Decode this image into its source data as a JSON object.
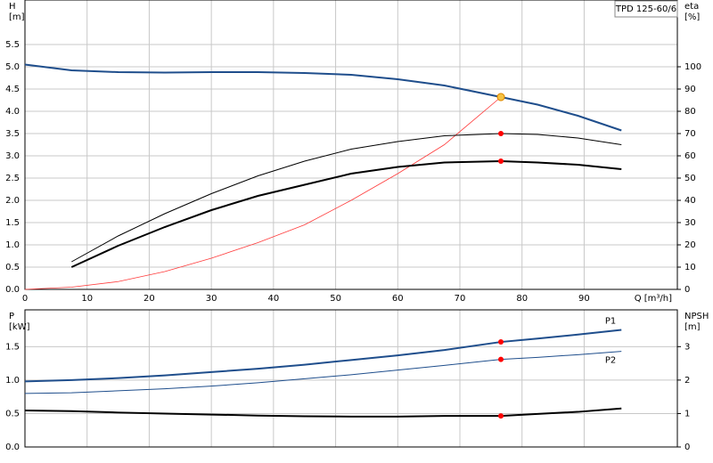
{
  "title": "TPD 125-60/6",
  "chart_data": [
    {
      "type": "line",
      "x_label": "Q [m³/h]",
      "y_label": "H",
      "y_unit": "[m]",
      "y2_label": "eta",
      "y2_unit": "[%]",
      "x": [
        0,
        7.5,
        15,
        22.5,
        30,
        37.5,
        45,
        52.5,
        60,
        67.5,
        76.6,
        82.5,
        89,
        96
      ],
      "xlim": [
        0,
        105
      ],
      "xticks": [
        0,
        10,
        20,
        30,
        40,
        50,
        60,
        70,
        80,
        90
      ],
      "ylim": [
        0,
        6.5
      ],
      "yticks": [
        {
          "value": 0,
          "label": "0.0"
        },
        0.5,
        {
          "value": 1,
          "label": "1.0"
        },
        1.5,
        {
          "value": 2,
          "label": "2.0"
        },
        2.5,
        {
          "value": 3,
          "label": "3.0"
        },
        3.5,
        {
          "value": 4,
          "label": "4.0"
        },
        4.5,
        {
          "value": 5,
          "label": "5.0"
        },
        5.5
      ],
      "y2lim": [
        0,
        130
      ],
      "y2ticks": [
        0,
        10,
        20,
        30,
        40,
        50,
        60,
        70,
        80,
        90,
        100
      ],
      "grid": true,
      "operating_point_q": 76.6,
      "series": [
        {
          "color": "#1f4e8c",
          "line_width": 2,
          "marker_color": "#f5c242",
          "values": [
            5.05,
            4.92,
            4.88,
            4.87,
            4.88,
            4.88,
            4.86,
            4.82,
            4.72,
            4.58,
            4.32,
            4.15,
            3.9,
            3.57
          ]
        },
        {
          "color": "#ff3b3b",
          "line_width": 0.8,
          "axis": "y2",
          "marker_color": "#f5c242",
          "values": [
            0,
            1,
            3.5,
            8,
            14,
            21,
            29,
            40,
            52,
            65,
            86.4,
            null,
            null,
            null
          ]
        },
        {
          "color": "#000000",
          "line_width": 1,
          "axis": "y2",
          "marker_color": "#ff0000",
          "values": [
            null,
            12.4,
            24,
            34,
            43,
            51,
            57.6,
            63,
            66.4,
            69,
            70,
            69.6,
            68,
            65
          ]
        },
        {
          "color": "#000000",
          "line_width": 2,
          "axis": "y2",
          "marker_color": "#ff0000",
          "values": [
            null,
            10,
            19.6,
            28,
            35.6,
            42,
            47,
            52,
            55,
            57,
            57.6,
            57,
            56,
            54
          ]
        }
      ]
    },
    {
      "type": "line",
      "y_label": "P",
      "y_unit": "[kW]",
      "y2_label": "NPSH",
      "y2_unit": "[m]",
      "x": [
        0,
        7.5,
        15,
        22.5,
        30,
        37.5,
        45,
        52.5,
        60,
        67.5,
        76.6,
        82.5,
        89,
        96
      ],
      "xlim": [
        0,
        105
      ],
      "xticks": [
        0,
        10,
        20,
        30,
        40,
        50,
        60,
        70,
        80,
        90
      ],
      "ylim": [
        0,
        2.05
      ],
      "yticks": [
        {
          "value": 0,
          "label": "0.0"
        },
        0.5,
        {
          "value": 1,
          "label": "1.0"
        },
        1.5
      ],
      "y2lim": [
        0,
        4.1
      ],
      "y2ticks": [
        0,
        1,
        2,
        3
      ],
      "grid": true,
      "operating_point_q": 76.6,
      "series": [
        {
          "name": "P1",
          "color": "#1f4e8c",
          "line_width": 2,
          "marker_color": "#ff0000",
          "values": [
            0.98,
            1.0,
            1.03,
            1.07,
            1.12,
            1.17,
            1.23,
            1.3,
            1.37,
            1.45,
            1.57,
            1.62,
            1.68,
            1.75
          ]
        },
        {
          "name": "P2",
          "color": "#1f4e8c",
          "line_width": 1,
          "marker_color": "#ff0000",
          "values": [
            0.8,
            0.81,
            0.84,
            0.87,
            0.91,
            0.96,
            1.02,
            1.08,
            1.15,
            1.22,
            1.31,
            1.34,
            1.38,
            1.43
          ]
        },
        {
          "color": "#000000",
          "line_width": 2,
          "axis": "y2",
          "marker_color": "#ff0000",
          "values": [
            1.09,
            1.07,
            1.03,
            1.0,
            0.97,
            0.94,
            0.92,
            0.91,
            0.91,
            0.93,
            0.93,
            0.99,
            1.05,
            1.15
          ]
        }
      ]
    }
  ]
}
